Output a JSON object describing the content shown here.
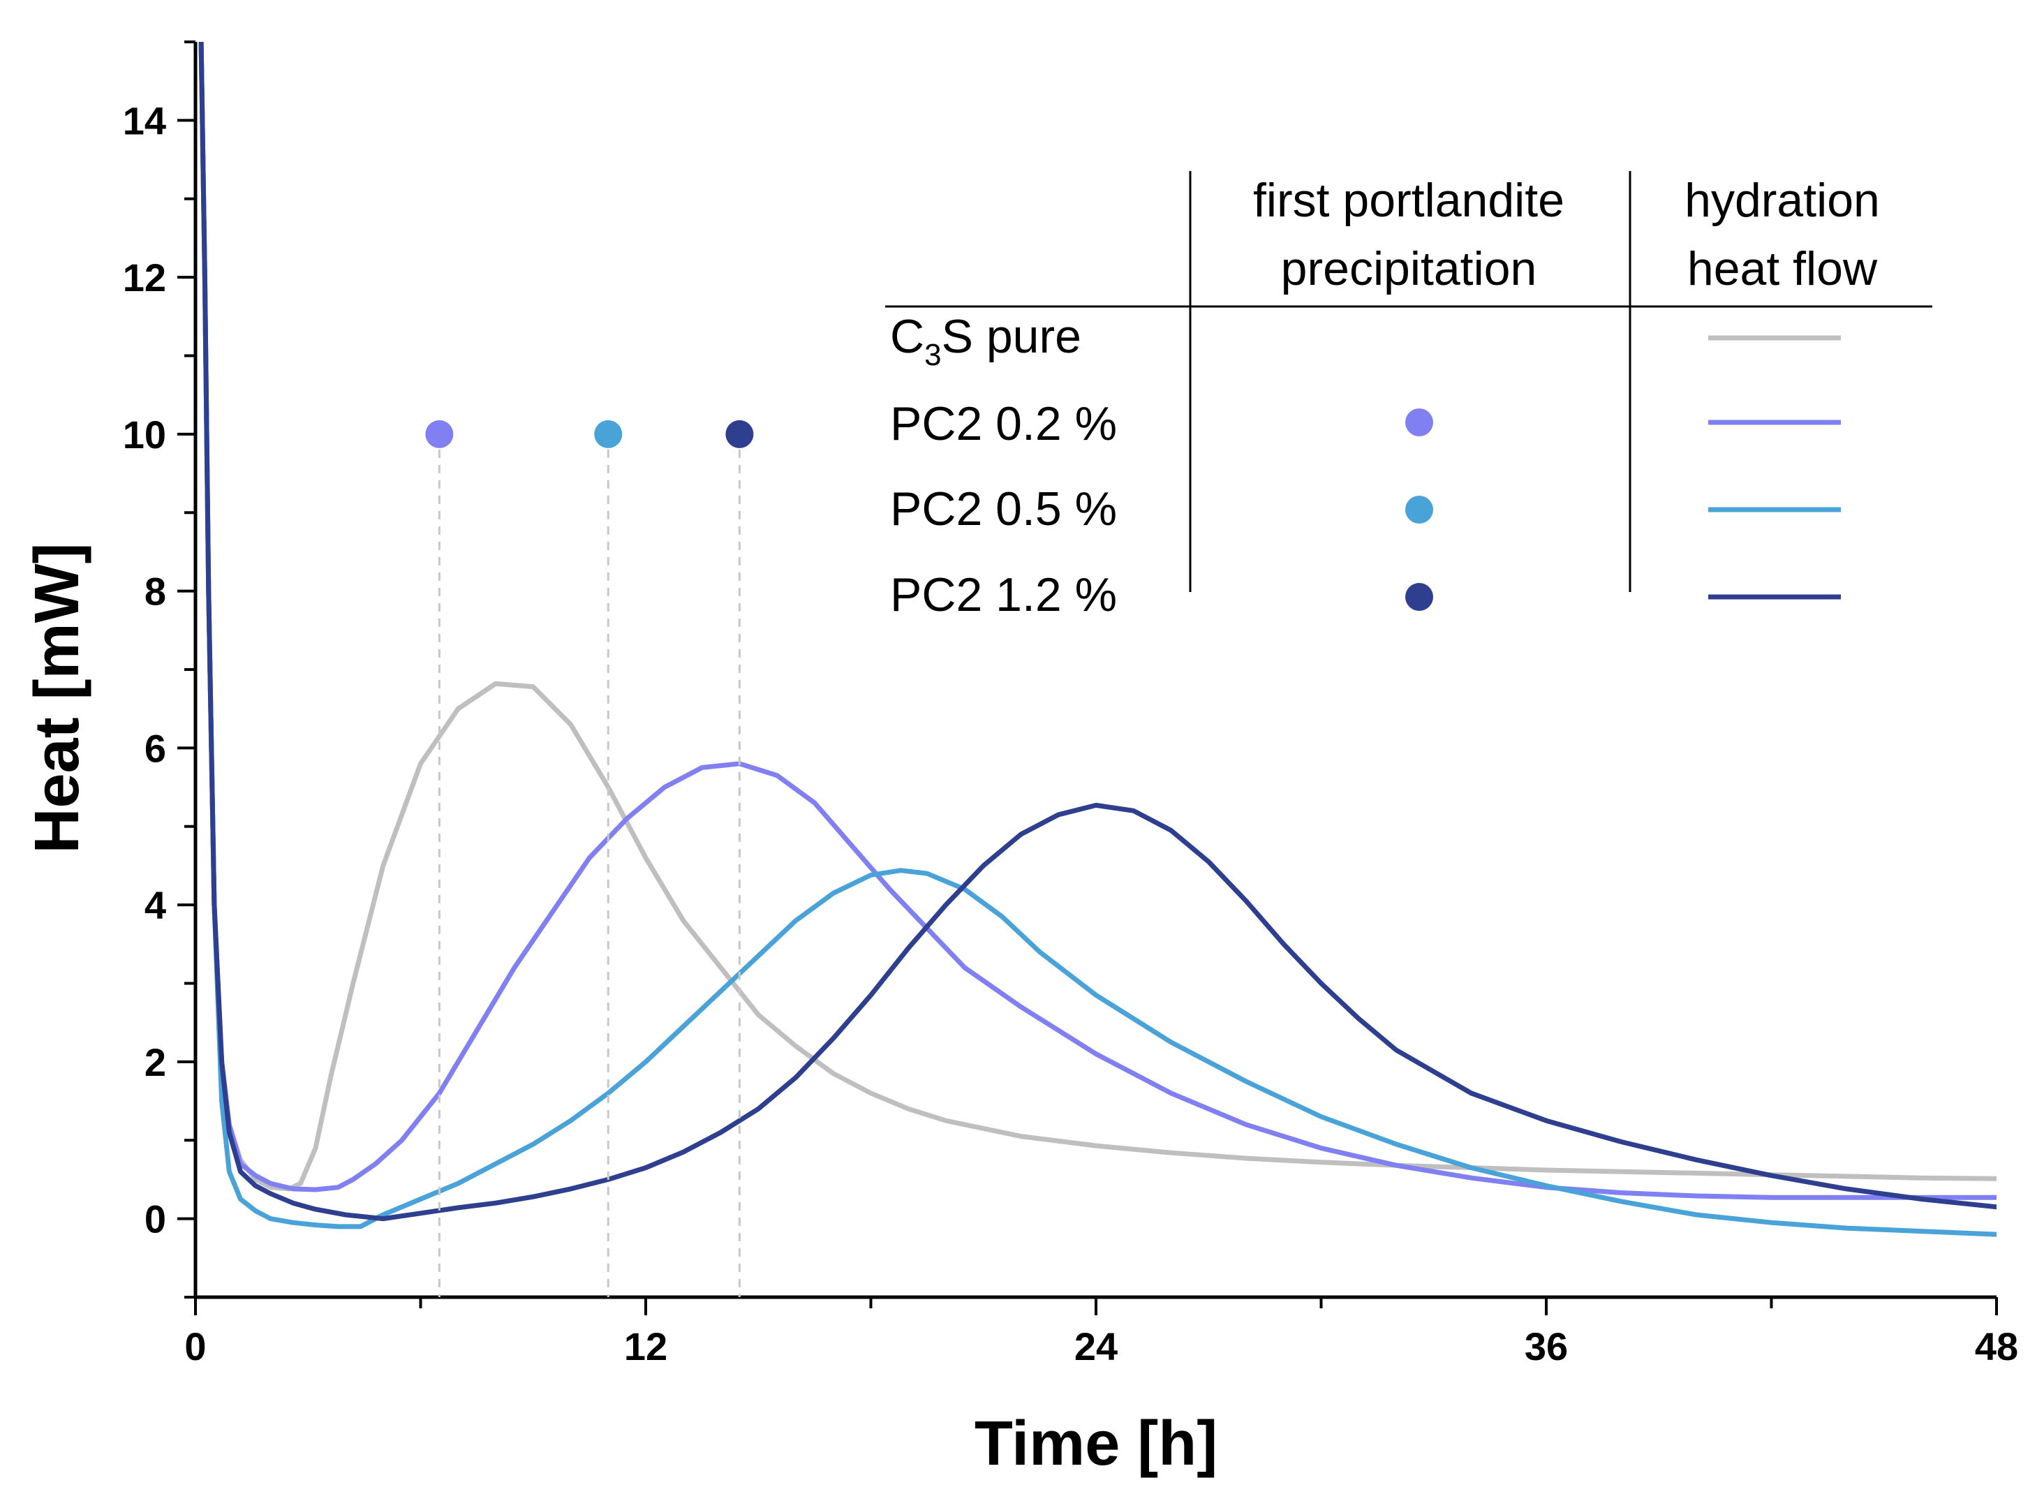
{
  "chart_data": {
    "type": "line",
    "title": "",
    "xlabel": "Time [h]",
    "ylabel": "Heat [mW]",
    "xlim": [
      0,
      48
    ],
    "ylim": [
      -1,
      15
    ],
    "xticks": [
      0,
      12,
      24,
      36,
      48
    ],
    "xtick_labels": [
      "0",
      "12",
      "24",
      "36",
      "48"
    ],
    "yticks": [
      0,
      2,
      4,
      6,
      8,
      10,
      12,
      14
    ],
    "ytick_labels": [
      "0",
      "2",
      "4",
      "6",
      "8",
      "10",
      "12",
      "14"
    ],
    "grid": false,
    "legend_position": "top-right",
    "legend": {
      "col_precipitation": [
        "first portlandite",
        "precipitation"
      ],
      "col_heatflow": [
        "hydration",
        "heat flow"
      ],
      "label_c3s_main": "C",
      "label_c3s_sub": "3",
      "label_c3s_rest": "S pure"
    },
    "series": [
      {
        "name": "C3S pure",
        "color": "#bfbfbf",
        "x": [
          0.15,
          0.25,
          0.35,
          0.5,
          0.7,
          0.9,
          1.2,
          1.6,
          2.0,
          2.5,
          2.8,
          3.2,
          3.6,
          4.2,
          5.0,
          6.0,
          7.0,
          8.0,
          9.0,
          10.0,
          11.0,
          12.0,
          13.0,
          14.0,
          15.0,
          16.0,
          17.0,
          18.0,
          19.0,
          20.0,
          22.0,
          24.0,
          26.0,
          28.0,
          30.0,
          32.0,
          34.0,
          36.0,
          38.0,
          40.0,
          42.0,
          44.0,
          46.0,
          48.0
        ],
        "y": [
          15,
          12,
          8,
          4,
          2.0,
          1.2,
          0.75,
          0.5,
          0.4,
          0.38,
          0.45,
          0.9,
          1.8,
          3.0,
          4.5,
          5.8,
          6.5,
          6.82,
          6.78,
          6.3,
          5.5,
          4.6,
          3.8,
          3.2,
          2.6,
          2.2,
          1.85,
          1.6,
          1.4,
          1.25,
          1.05,
          0.93,
          0.84,
          0.77,
          0.72,
          0.68,
          0.65,
          0.62,
          0.6,
          0.58,
          0.56,
          0.54,
          0.52,
          0.51
        ]
      },
      {
        "name": "PC2 0.2 %",
        "color": "#8080f2",
        "x": [
          0.15,
          0.25,
          0.35,
          0.5,
          0.7,
          0.9,
          1.2,
          1.6,
          2.0,
          2.6,
          3.2,
          3.8,
          4.2,
          4.8,
          5.5,
          6.5,
          7.5,
          8.5,
          9.5,
          10.5,
          11.5,
          12.5,
          13.5,
          14.5,
          15.5,
          16.5,
          17.5,
          18.5,
          19.5,
          20.5,
          22.0,
          24.0,
          26.0,
          28.0,
          30.0,
          32.0,
          34.0,
          36.0,
          38.0,
          40.0,
          42.0,
          44.0,
          46.0,
          48.0
        ],
        "y": [
          15,
          12,
          8,
          4,
          2.0,
          1.2,
          0.7,
          0.55,
          0.45,
          0.38,
          0.37,
          0.4,
          0.5,
          0.7,
          1.0,
          1.6,
          2.4,
          3.2,
          3.9,
          4.6,
          5.1,
          5.5,
          5.75,
          5.8,
          5.65,
          5.3,
          4.75,
          4.2,
          3.7,
          3.2,
          2.7,
          2.1,
          1.6,
          1.2,
          0.9,
          0.68,
          0.52,
          0.4,
          0.33,
          0.29,
          0.27,
          0.27,
          0.27,
          0.27
        ]
      },
      {
        "name": "PC2 0.5 %",
        "color": "#4aa3d8",
        "x": [
          0.15,
          0.25,
          0.35,
          0.5,
          0.7,
          0.9,
          1.2,
          1.6,
          2.0,
          2.6,
          3.2,
          3.8,
          4.4,
          5.0,
          6.0,
          7.0,
          8.0,
          9.0,
          10.0,
          11.0,
          12.0,
          13.0,
          14.0,
          15.0,
          16.0,
          17.0,
          18.0,
          18.8,
          19.5,
          20.5,
          21.5,
          22.5,
          24.0,
          26.0,
          28.0,
          30.0,
          32.0,
          34.0,
          36.0,
          38.0,
          40.0,
          42.0,
          44.0,
          46.0,
          48.0
        ],
        "y": [
          15,
          12,
          8,
          4,
          1.5,
          0.6,
          0.25,
          0.1,
          0.0,
          -0.05,
          -0.08,
          -0.1,
          -0.1,
          0.05,
          0.25,
          0.45,
          0.7,
          0.95,
          1.25,
          1.6,
          2.0,
          2.45,
          2.9,
          3.35,
          3.8,
          4.15,
          4.38,
          4.44,
          4.4,
          4.2,
          3.85,
          3.4,
          2.85,
          2.25,
          1.75,
          1.3,
          0.95,
          0.65,
          0.42,
          0.22,
          0.05,
          -0.05,
          -0.12,
          -0.16,
          -0.2
        ]
      },
      {
        "name": "PC2 1.2 %",
        "color": "#2e3f8f",
        "x": [
          0.15,
          0.25,
          0.35,
          0.5,
          0.7,
          0.9,
          1.2,
          1.6,
          2.0,
          2.6,
          3.2,
          4.0,
          5.0,
          6.0,
          7.0,
          8.0,
          9.0,
          10.0,
          11.0,
          12.0,
          13.0,
          14.0,
          15.0,
          16.0,
          17.0,
          18.0,
          19.0,
          20.0,
          21.0,
          22.0,
          23.0,
          24.0,
          25.0,
          26.0,
          27.0,
          28.0,
          29.0,
          30.0,
          31.0,
          32.0,
          34.0,
          36.0,
          38.0,
          40.0,
          42.0,
          44.0,
          46.0,
          48.0
        ],
        "y": [
          15,
          12,
          8,
          4,
          2.0,
          1.1,
          0.6,
          0.42,
          0.32,
          0.2,
          0.12,
          0.05,
          0.0,
          0.07,
          0.14,
          0.2,
          0.28,
          0.38,
          0.5,
          0.65,
          0.85,
          1.1,
          1.4,
          1.8,
          2.3,
          2.85,
          3.45,
          4.0,
          4.5,
          4.9,
          5.15,
          5.27,
          5.2,
          4.95,
          4.55,
          4.05,
          3.5,
          3.0,
          2.55,
          2.15,
          1.6,
          1.25,
          0.98,
          0.75,
          0.55,
          0.38,
          0.25,
          0.15
        ]
      }
    ],
    "markers": [
      {
        "name": "PC2 0.2 %",
        "x": 6.5,
        "y": 10,
        "color": "#8080f2"
      },
      {
        "name": "PC2 0.5 %",
        "x": 11.0,
        "y": 10,
        "color": "#4aa3d8"
      },
      {
        "name": "PC2 1.2 %",
        "x": 14.5,
        "y": 10,
        "color": "#2e3f8f"
      }
    ],
    "legend_rows": [
      {
        "label": "C3S pure",
        "has_dot": false,
        "color": "#bfbfbf"
      },
      {
        "label": "PC2 0.2 %",
        "has_dot": true,
        "color": "#8080f2"
      },
      {
        "label": "PC2 0.5 %",
        "has_dot": true,
        "color": "#4aa3d8"
      },
      {
        "label": "PC2 1.2 %",
        "has_dot": true,
        "color": "#2e3f8f"
      }
    ]
  }
}
